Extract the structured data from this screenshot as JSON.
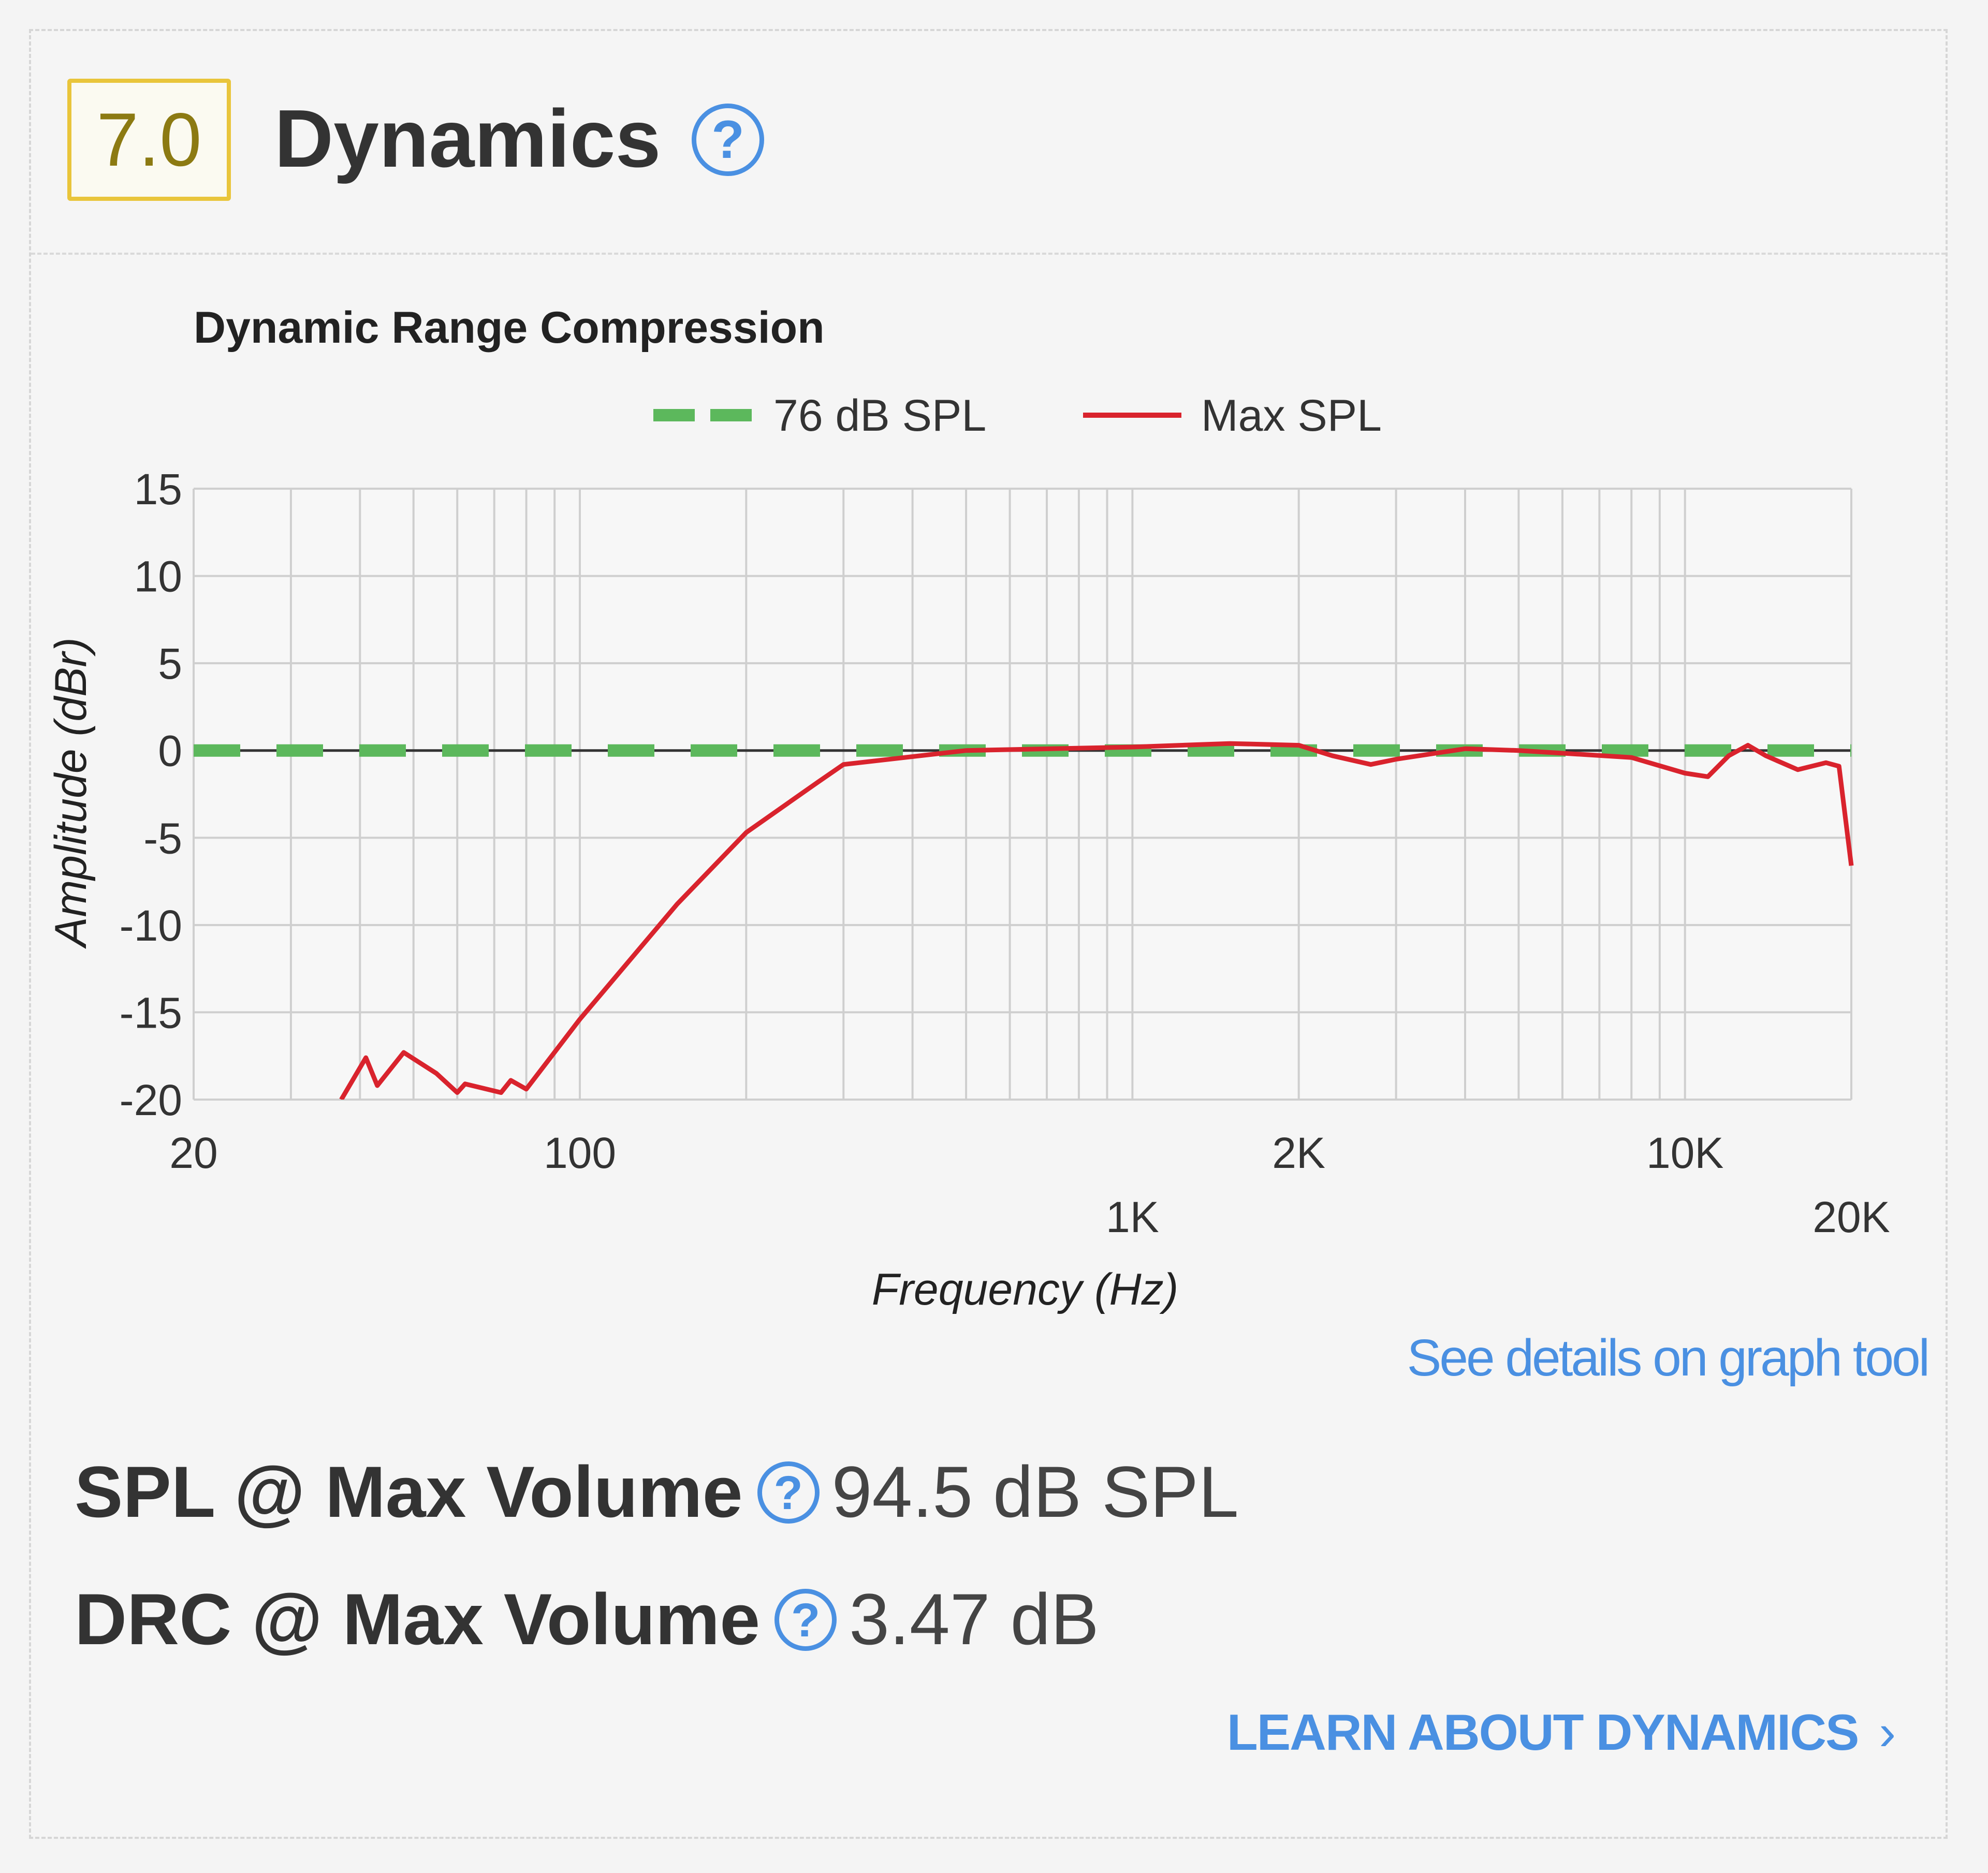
{
  "section": {
    "score": "7.0",
    "title": "Dynamics",
    "help_glyph": "?"
  },
  "chart_data": {
    "type": "line",
    "title": "Dynamic Range Compression",
    "xlabel": "Frequency (Hz)",
    "ylabel": "Amplitude (dBr)",
    "x_scale": "log",
    "xlim": [
      20,
      20000
    ],
    "ylim": [
      -20,
      15
    ],
    "grid": true,
    "legend_position": "top",
    "x_ticks_row1": [
      "20",
      "100",
      "2K",
      "10K"
    ],
    "x_ticks_row2": [
      "1K",
      "20K"
    ],
    "y_ticks": [
      "15",
      "10",
      "5",
      "0",
      "-5",
      "-10",
      "-15",
      "-20"
    ],
    "series": [
      {
        "name": "76 dB SPL",
        "color": "#5cb85c",
        "style": "dashed",
        "x": [
          20,
          20000
        ],
        "y": [
          0,
          0
        ]
      },
      {
        "name": "Max SPL",
        "color": "#d9232d",
        "style": "solid",
        "x": [
          37,
          41,
          43,
          48,
          55,
          60,
          62,
          72,
          75,
          80,
          100,
          150,
          200,
          270,
          300,
          500,
          1000,
          1500,
          2000,
          2300,
          2700,
          3000,
          4000,
          5000,
          8000,
          10000,
          11000,
          12000,
          13000,
          14000,
          16000,
          18000,
          19000,
          20000
        ],
        "y": [
          -20,
          -17.6,
          -19.2,
          -17.3,
          -18.5,
          -19.6,
          -19.1,
          -19.6,
          -18.9,
          -19.4,
          -15.4,
          -8.8,
          -4.7,
          -1.8,
          -0.8,
          0,
          0.2,
          0.4,
          0.3,
          -0.3,
          -0.8,
          -0.5,
          0.1,
          0,
          -0.4,
          -1.3,
          -1.5,
          -0.3,
          0.3,
          -0.3,
          -1.1,
          -0.7,
          -0.9,
          -6.6
        ]
      }
    ]
  },
  "links": {
    "graph_tool": "See details on graph tool",
    "learn_more": "LEARN ABOUT DYNAMICS",
    "learn_chevron": "›"
  },
  "stats": [
    {
      "label": "SPL @ Max Volume",
      "value": "94.5 dB SPL"
    },
    {
      "label": "DRC @ Max Volume",
      "value": "3.47 dB"
    }
  ]
}
